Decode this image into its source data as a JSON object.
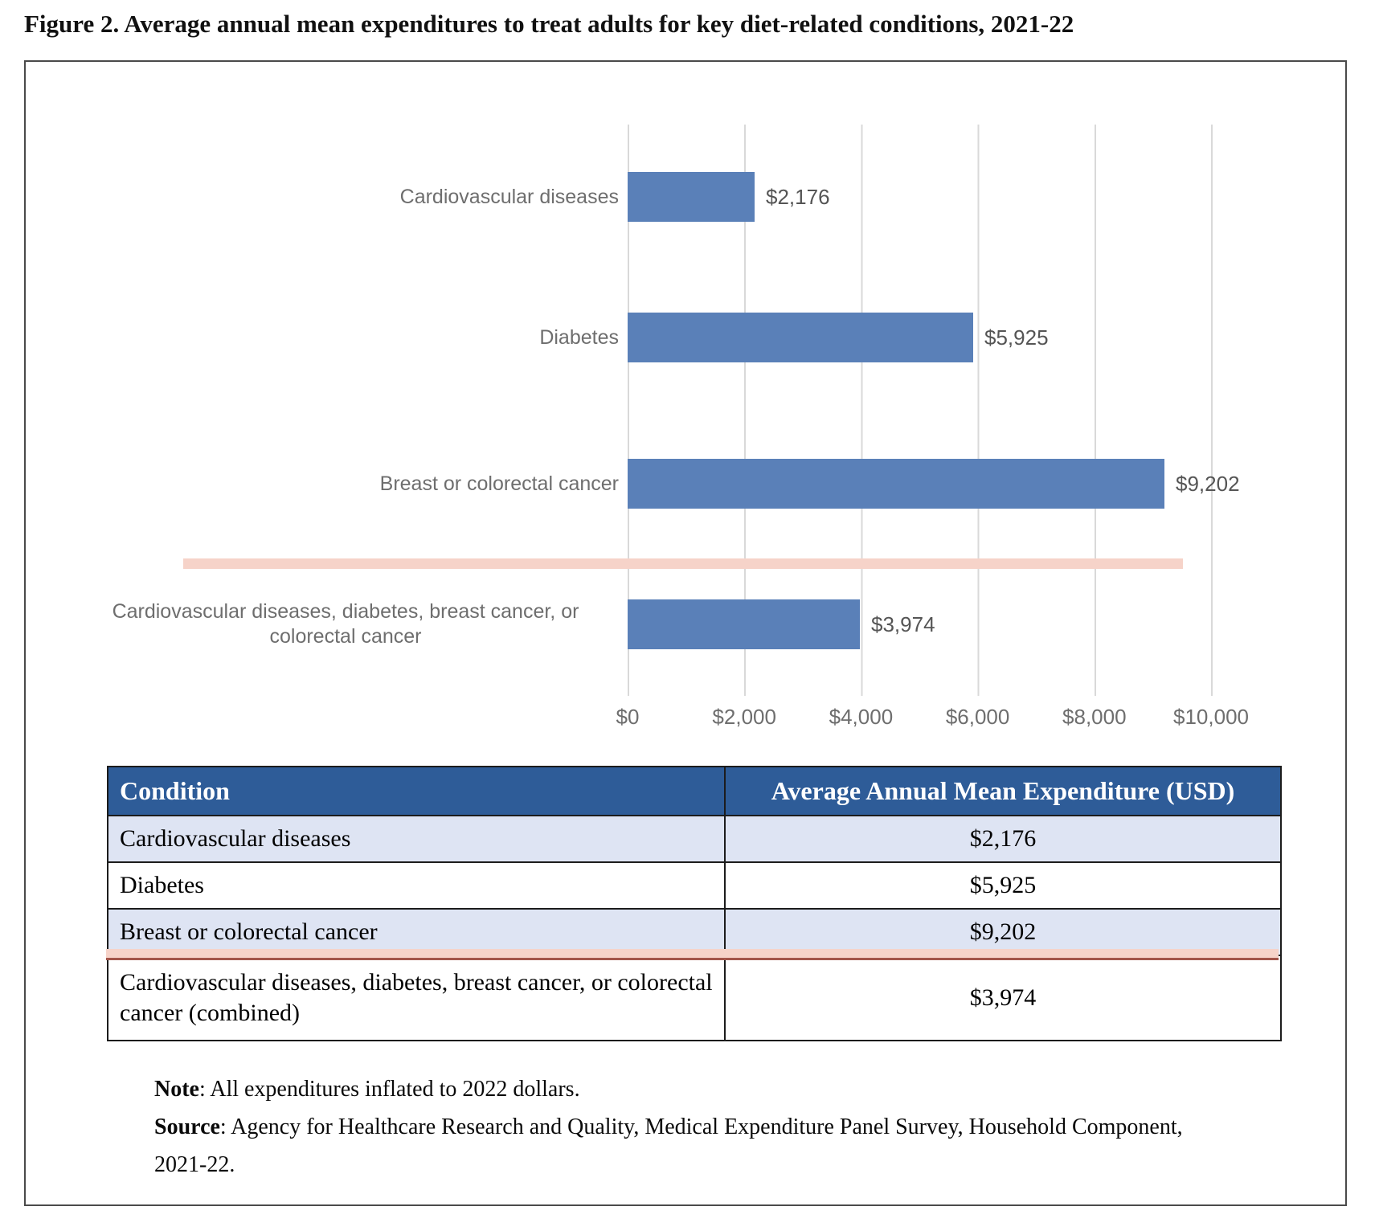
{
  "title": "Figure 2. Average annual mean expenditures to treat adults for key diet-related conditions, 2021-22",
  "chart_data": {
    "type": "bar",
    "orientation": "horizontal",
    "title": "",
    "xlabel": "",
    "ylabel": "",
    "categories": [
      "Cardiovascular diseases",
      "Diabetes",
      "Breast or colorectal cancer",
      "Cardiovascular diseases, diabetes, breast cancer, or colorectal cancer"
    ],
    "values": [
      2176,
      5925,
      9202,
      3974
    ],
    "value_labels": [
      "$2,176",
      "$5,925",
      "$9,202",
      "$3,974"
    ],
    "x_ticks": [
      "$0",
      "$2,000",
      "$4,000",
      "$6,000",
      "$8,000",
      "$10,000"
    ],
    "x_tick_values": [
      0,
      2000,
      4000,
      6000,
      8000,
      10000
    ],
    "xlim": [
      0,
      10000
    ],
    "grid": true,
    "legend": "none",
    "bar_color": "#5a80b8",
    "separator_color": "#f6d3c9",
    "separator_note": "pink divider line between third and fourth bars"
  },
  "table": {
    "headers": [
      "Condition",
      "Average Annual Mean Expenditure (USD)"
    ],
    "rows": [
      {
        "condition": "Cardiovascular diseases",
        "expenditure": "$2,176"
      },
      {
        "condition": "Diabetes",
        "expenditure": "$5,925"
      },
      {
        "condition": "Breast or colorectal cancer",
        "expenditure": "$9,202"
      },
      {
        "condition": "Cardiovascular diseases, diabetes, breast cancer, or colorectal cancer (combined)",
        "expenditure": "$3,974"
      }
    ],
    "header_bg": "#2e5c98",
    "alt_row_bg": "#dee4f3"
  },
  "notes": {
    "note_label": "Note",
    "note_text": ": All expenditures inflated to 2022 dollars.",
    "source_label": "Source",
    "source_text": ": Agency for Healthcare Research and Quality, Medical Expenditure Panel Survey, Household Component, 2021-22."
  },
  "colors": {
    "bar": "#5a80b8",
    "table_header": "#2e5c98",
    "table_alt_row": "#dee4f3",
    "separator_pink": "#f6d3c9",
    "gridline": "#d9d9d9",
    "chart_text": "#6e6e6e",
    "value_text": "#555555",
    "box_border": "#4a4a4a"
  }
}
